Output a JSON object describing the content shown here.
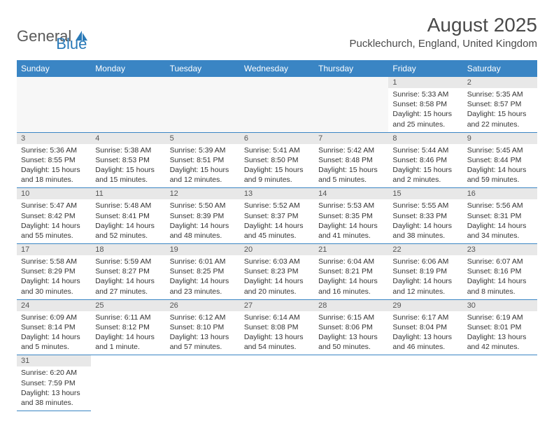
{
  "brand": {
    "part1": "General",
    "part2": "Blue",
    "icon_color": "#2a7ab8"
  },
  "title": "August 2025",
  "location": "Pucklechurch, England, United Kingdom",
  "colors": {
    "header_bg": "#3a85c4",
    "header_text": "#ffffff",
    "daynum_bg": "#e8e8e8",
    "border": "#3a85c4",
    "body_text": "#333333"
  },
  "weekdays": [
    "Sunday",
    "Monday",
    "Tuesday",
    "Wednesday",
    "Thursday",
    "Friday",
    "Saturday"
  ],
  "weeks": [
    [
      null,
      null,
      null,
      null,
      null,
      {
        "n": "1",
        "sunrise": "Sunrise: 5:33 AM",
        "sunset": "Sunset: 8:58 PM",
        "daylight": "Daylight: 15 hours and 25 minutes."
      },
      {
        "n": "2",
        "sunrise": "Sunrise: 5:35 AM",
        "sunset": "Sunset: 8:57 PM",
        "daylight": "Daylight: 15 hours and 22 minutes."
      }
    ],
    [
      {
        "n": "3",
        "sunrise": "Sunrise: 5:36 AM",
        "sunset": "Sunset: 8:55 PM",
        "daylight": "Daylight: 15 hours and 18 minutes."
      },
      {
        "n": "4",
        "sunrise": "Sunrise: 5:38 AM",
        "sunset": "Sunset: 8:53 PM",
        "daylight": "Daylight: 15 hours and 15 minutes."
      },
      {
        "n": "5",
        "sunrise": "Sunrise: 5:39 AM",
        "sunset": "Sunset: 8:51 PM",
        "daylight": "Daylight: 15 hours and 12 minutes."
      },
      {
        "n": "6",
        "sunrise": "Sunrise: 5:41 AM",
        "sunset": "Sunset: 8:50 PM",
        "daylight": "Daylight: 15 hours and 9 minutes."
      },
      {
        "n": "7",
        "sunrise": "Sunrise: 5:42 AM",
        "sunset": "Sunset: 8:48 PM",
        "daylight": "Daylight: 15 hours and 5 minutes."
      },
      {
        "n": "8",
        "sunrise": "Sunrise: 5:44 AM",
        "sunset": "Sunset: 8:46 PM",
        "daylight": "Daylight: 15 hours and 2 minutes."
      },
      {
        "n": "9",
        "sunrise": "Sunrise: 5:45 AM",
        "sunset": "Sunset: 8:44 PM",
        "daylight": "Daylight: 14 hours and 59 minutes."
      }
    ],
    [
      {
        "n": "10",
        "sunrise": "Sunrise: 5:47 AM",
        "sunset": "Sunset: 8:42 PM",
        "daylight": "Daylight: 14 hours and 55 minutes."
      },
      {
        "n": "11",
        "sunrise": "Sunrise: 5:48 AM",
        "sunset": "Sunset: 8:41 PM",
        "daylight": "Daylight: 14 hours and 52 minutes."
      },
      {
        "n": "12",
        "sunrise": "Sunrise: 5:50 AM",
        "sunset": "Sunset: 8:39 PM",
        "daylight": "Daylight: 14 hours and 48 minutes."
      },
      {
        "n": "13",
        "sunrise": "Sunrise: 5:52 AM",
        "sunset": "Sunset: 8:37 PM",
        "daylight": "Daylight: 14 hours and 45 minutes."
      },
      {
        "n": "14",
        "sunrise": "Sunrise: 5:53 AM",
        "sunset": "Sunset: 8:35 PM",
        "daylight": "Daylight: 14 hours and 41 minutes."
      },
      {
        "n": "15",
        "sunrise": "Sunrise: 5:55 AM",
        "sunset": "Sunset: 8:33 PM",
        "daylight": "Daylight: 14 hours and 38 minutes."
      },
      {
        "n": "16",
        "sunrise": "Sunrise: 5:56 AM",
        "sunset": "Sunset: 8:31 PM",
        "daylight": "Daylight: 14 hours and 34 minutes."
      }
    ],
    [
      {
        "n": "17",
        "sunrise": "Sunrise: 5:58 AM",
        "sunset": "Sunset: 8:29 PM",
        "daylight": "Daylight: 14 hours and 30 minutes."
      },
      {
        "n": "18",
        "sunrise": "Sunrise: 5:59 AM",
        "sunset": "Sunset: 8:27 PM",
        "daylight": "Daylight: 14 hours and 27 minutes."
      },
      {
        "n": "19",
        "sunrise": "Sunrise: 6:01 AM",
        "sunset": "Sunset: 8:25 PM",
        "daylight": "Daylight: 14 hours and 23 minutes."
      },
      {
        "n": "20",
        "sunrise": "Sunrise: 6:03 AM",
        "sunset": "Sunset: 8:23 PM",
        "daylight": "Daylight: 14 hours and 20 minutes."
      },
      {
        "n": "21",
        "sunrise": "Sunrise: 6:04 AM",
        "sunset": "Sunset: 8:21 PM",
        "daylight": "Daylight: 14 hours and 16 minutes."
      },
      {
        "n": "22",
        "sunrise": "Sunrise: 6:06 AM",
        "sunset": "Sunset: 8:19 PM",
        "daylight": "Daylight: 14 hours and 12 minutes."
      },
      {
        "n": "23",
        "sunrise": "Sunrise: 6:07 AM",
        "sunset": "Sunset: 8:16 PM",
        "daylight": "Daylight: 14 hours and 8 minutes."
      }
    ],
    [
      {
        "n": "24",
        "sunrise": "Sunrise: 6:09 AM",
        "sunset": "Sunset: 8:14 PM",
        "daylight": "Daylight: 14 hours and 5 minutes."
      },
      {
        "n": "25",
        "sunrise": "Sunrise: 6:11 AM",
        "sunset": "Sunset: 8:12 PM",
        "daylight": "Daylight: 14 hours and 1 minute."
      },
      {
        "n": "26",
        "sunrise": "Sunrise: 6:12 AM",
        "sunset": "Sunset: 8:10 PM",
        "daylight": "Daylight: 13 hours and 57 minutes."
      },
      {
        "n": "27",
        "sunrise": "Sunrise: 6:14 AM",
        "sunset": "Sunset: 8:08 PM",
        "daylight": "Daylight: 13 hours and 54 minutes."
      },
      {
        "n": "28",
        "sunrise": "Sunrise: 6:15 AM",
        "sunset": "Sunset: 8:06 PM",
        "daylight": "Daylight: 13 hours and 50 minutes."
      },
      {
        "n": "29",
        "sunrise": "Sunrise: 6:17 AM",
        "sunset": "Sunset: 8:04 PM",
        "daylight": "Daylight: 13 hours and 46 minutes."
      },
      {
        "n": "30",
        "sunrise": "Sunrise: 6:19 AM",
        "sunset": "Sunset: 8:01 PM",
        "daylight": "Daylight: 13 hours and 42 minutes."
      }
    ],
    [
      {
        "n": "31",
        "sunrise": "Sunrise: 6:20 AM",
        "sunset": "Sunset: 7:59 PM",
        "daylight": "Daylight: 13 hours and 38 minutes."
      },
      null,
      null,
      null,
      null,
      null,
      null
    ]
  ]
}
